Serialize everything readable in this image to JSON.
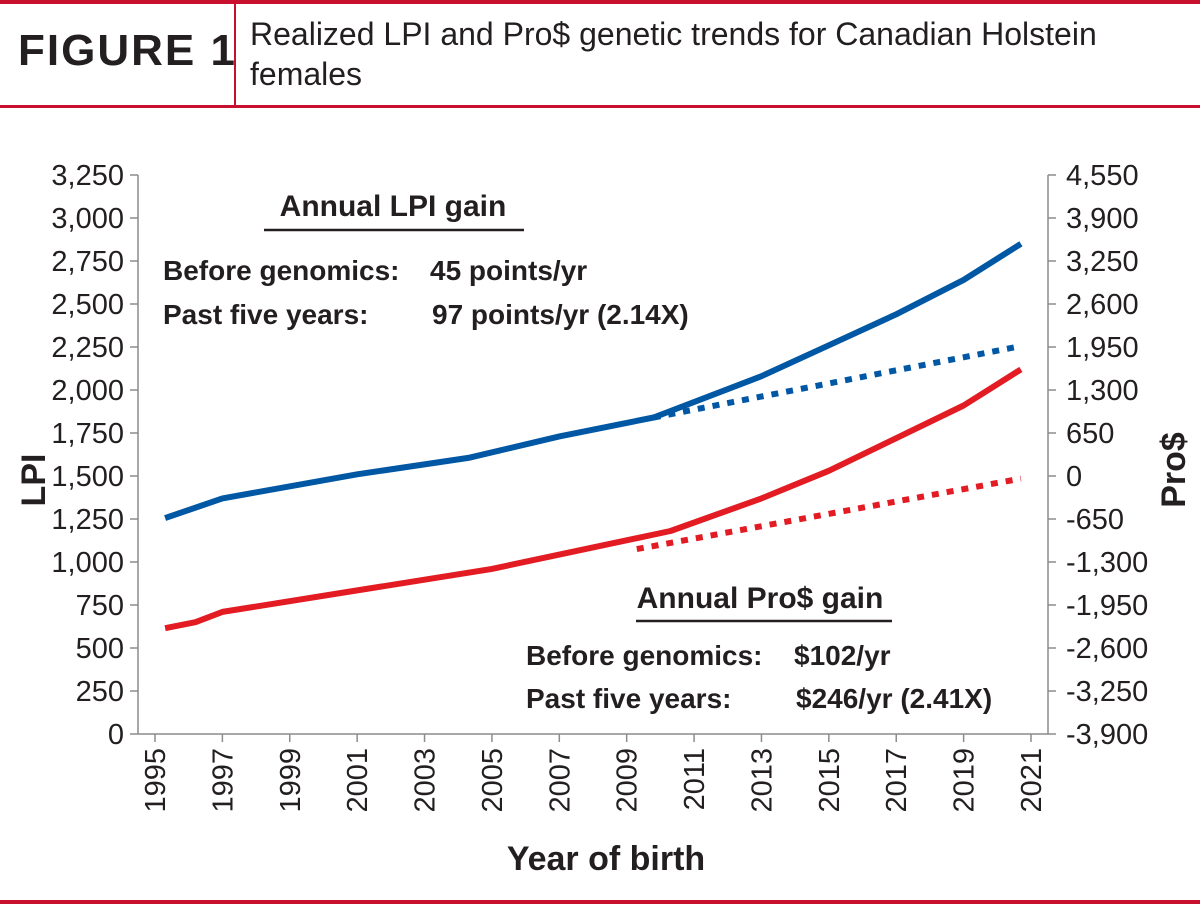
{
  "header": {
    "figure_label": "FIGURE 1",
    "title": "Realized LPI and Pro$ genetic trends for Canadian Holstein females"
  },
  "chart_data": {
    "type": "line",
    "xlabel": "Year of birth",
    "ylabel_left": "LPI",
    "ylabel_right": "Pro$",
    "x_ticks": [
      "1995",
      "1997",
      "1999",
      "2001",
      "2003",
      "2005",
      "2007",
      "2009",
      "2011",
      "2013",
      "2015",
      "2017",
      "2019",
      "2021"
    ],
    "xlim": [
      1995,
      2021
    ],
    "ylim_left": [
      0,
      3250
    ],
    "y_ticks_left": [
      "0",
      "250",
      "500",
      "750",
      "1,000",
      "1,250",
      "1,500",
      "1,750",
      "2,000",
      "2,250",
      "2,500",
      "2,750",
      "3,000",
      "3,250"
    ],
    "ylim_right": [
      -3900,
      4550
    ],
    "y_ticks_right": [
      "-3,900",
      "-3,250",
      "-2,600",
      "-1,950",
      "-1,300",
      "-650",
      "0",
      "650",
      "1,300",
      "1,950",
      "2,600",
      "3,250",
      "3,900",
      "4,550"
    ],
    "series": [
      {
        "axis": "left",
        "style": "solid",
        "color": "#0057a4",
        "points": [
          [
            1995.3,
            1255
          ],
          [
            1997,
            1370
          ],
          [
            2001,
            1510
          ],
          [
            2004.3,
            1605
          ],
          [
            2007,
            1730
          ],
          [
            2009.8,
            1840
          ],
          [
            2013,
            2080
          ],
          [
            2015,
            2260
          ],
          [
            2017,
            2440
          ],
          [
            2019,
            2640
          ],
          [
            2020.7,
            2850
          ]
        ]
      },
      {
        "axis": "left",
        "style": "dotted",
        "color": "#0057a4",
        "points": [
          [
            2009.8,
            1840
          ],
          [
            2020.7,
            2255
          ]
        ]
      },
      {
        "axis": "left",
        "style": "solid",
        "color": "#e31b23",
        "points": [
          [
            1995.3,
            615
          ],
          [
            1996.2,
            650
          ],
          [
            1997,
            710
          ],
          [
            2001,
            835
          ],
          [
            2005,
            960
          ],
          [
            2010.3,
            1180
          ],
          [
            2013,
            1370
          ],
          [
            2015,
            1530
          ],
          [
            2017,
            1720
          ],
          [
            2019,
            1910
          ],
          [
            2020.7,
            2120
          ]
        ]
      },
      {
        "axis": "left",
        "style": "dotted",
        "color": "#e31b23",
        "points": [
          [
            2009.3,
            1075
          ],
          [
            2020.7,
            1485
          ]
        ]
      }
    ],
    "annotations": {
      "lpi_heading": "Annual LPI gain",
      "lpi_before_label": "Before genomics:",
      "lpi_before_value": "45 points/yr",
      "lpi_past_label": "Past five years:",
      "lpi_past_value": "97 points/yr (2.14X)",
      "pro_heading": "Annual Pro$ gain",
      "pro_before_label": "Before genomics:",
      "pro_before_value": "$102/yr",
      "pro_past_label": "Past five years:",
      "pro_past_value": "$246/yr (2.41X)"
    }
  }
}
